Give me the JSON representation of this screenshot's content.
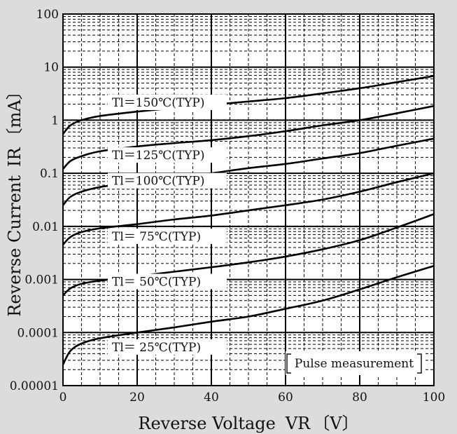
{
  "chart_data": {
    "type": "line",
    "title": "",
    "xlabel": "Reverse Voltage",
    "xlabel_symbol": "VR",
    "xlabel_unit": "〔V〕",
    "ylabel": "Reverse Current",
    "ylabel_symbol": "IR",
    "ylabel_unit": "〔mA〕",
    "xlim": [
      0,
      100
    ],
    "ylim": [
      1e-05,
      100
    ],
    "yscale": "log",
    "grid": true,
    "x_ticks": [
      "0",
      "20",
      "40",
      "60",
      "80",
      "100"
    ],
    "y_ticks": [
      "0.00001",
      "0.0001",
      "0.001",
      "0.01",
      "0.1",
      "1",
      "10",
      "100"
    ],
    "annotation": "Pulse measurement",
    "series": [
      {
        "name": "Tl = 150°C(TYP)",
        "label": "Tl＝150℃(TYP)",
        "x": [
          0,
          2,
          5,
          10,
          20,
          30,
          40,
          50,
          60,
          70,
          80,
          90,
          100
        ],
        "y": [
          0.55,
          0.8,
          1.0,
          1.2,
          1.45,
          1.7,
          1.95,
          2.25,
          2.6,
          3.2,
          4.0,
          5.2,
          6.8
        ]
      },
      {
        "name": "Tl = 125°C(TYP)",
        "label": "Tl＝125℃(TYP)",
        "x": [
          0,
          2,
          5,
          10,
          20,
          30,
          40,
          50,
          60,
          70,
          80,
          90,
          100
        ],
        "y": [
          0.12,
          0.17,
          0.21,
          0.26,
          0.32,
          0.37,
          0.42,
          0.5,
          0.62,
          0.8,
          1.0,
          1.35,
          1.85
        ]
      },
      {
        "name": "Tl = 100°C(TYP)",
        "label": "Tl＝100℃(TYP)",
        "x": [
          0,
          2,
          5,
          10,
          20,
          30,
          40,
          50,
          60,
          70,
          80,
          90,
          100
        ],
        "y": [
          0.025,
          0.036,
          0.045,
          0.055,
          0.068,
          0.082,
          0.1,
          0.125,
          0.15,
          0.19,
          0.24,
          0.33,
          0.45
        ]
      },
      {
        "name": "Tl = 75°C(TYP)",
        "label": "Tl＝ 75℃(TYP)",
        "x": [
          0,
          2,
          5,
          10,
          20,
          30,
          40,
          50,
          60,
          70,
          80,
          90,
          100
        ],
        "y": [
          0.0045,
          0.0063,
          0.0078,
          0.0092,
          0.011,
          0.0135,
          0.016,
          0.02,
          0.025,
          0.032,
          0.045,
          0.068,
          0.1
        ]
      },
      {
        "name": "Tl = 50°C(TYP)",
        "label": "Tl＝ 50℃(TYP)",
        "x": [
          0,
          2,
          5,
          10,
          20,
          30,
          40,
          50,
          60,
          70,
          80,
          90,
          100
        ],
        "y": [
          0.0005,
          0.00068,
          0.00083,
          0.00095,
          0.00115,
          0.0014,
          0.0017,
          0.0021,
          0.0027,
          0.0037,
          0.0055,
          0.0095,
          0.017
        ]
      },
      {
        "name": "Tl = 25°C(TYP)",
        "label": "Tl＝ 25℃(TYP)",
        "x": [
          0,
          2,
          5,
          10,
          20,
          30,
          40,
          50,
          60,
          70,
          80,
          90,
          100
        ],
        "y": [
          2.5e-05,
          4.5e-05,
          6.2e-05,
          7.8e-05,
          0.0001,
          0.000125,
          0.00016,
          0.0002,
          0.00028,
          0.0004,
          0.00065,
          0.0011,
          0.0018
        ]
      }
    ]
  }
}
